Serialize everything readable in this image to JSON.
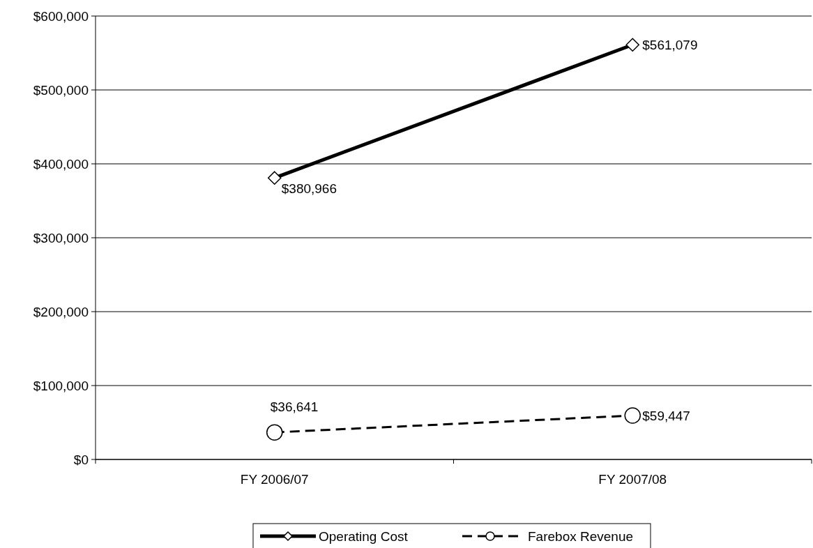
{
  "chart_data": {
    "type": "line",
    "categories": [
      "FY 2006/07",
      "FY 2007/08"
    ],
    "series": [
      {
        "name": "Operating Cost",
        "color": "#000000",
        "values": [
          380966,
          561079
        ],
        "value_labels": [
          "$380,966",
          "$561,079"
        ],
        "marker": "diamond",
        "line_style": "solid"
      },
      {
        "name": "Farebox Revenue",
        "color": "#000000",
        "values": [
          36641,
          59447
        ],
        "value_labels": [
          "$36,641",
          "$59,447"
        ],
        "marker": "circle",
        "line_style": "dashed"
      }
    ],
    "ylim": [
      0,
      600000
    ],
    "yticks": [
      {
        "value": 0,
        "label": "$0"
      },
      {
        "value": 100000,
        "label": "$100,000"
      },
      {
        "value": 200000,
        "label": "$200,000"
      },
      {
        "value": 300000,
        "label": "$300,000"
      },
      {
        "value": 400000,
        "label": "$400,000"
      },
      {
        "value": 500000,
        "label": "$500,000"
      },
      {
        "value": 600000,
        "label": "$600,000"
      }
    ],
    "grid": "y",
    "legend": "bottom"
  }
}
